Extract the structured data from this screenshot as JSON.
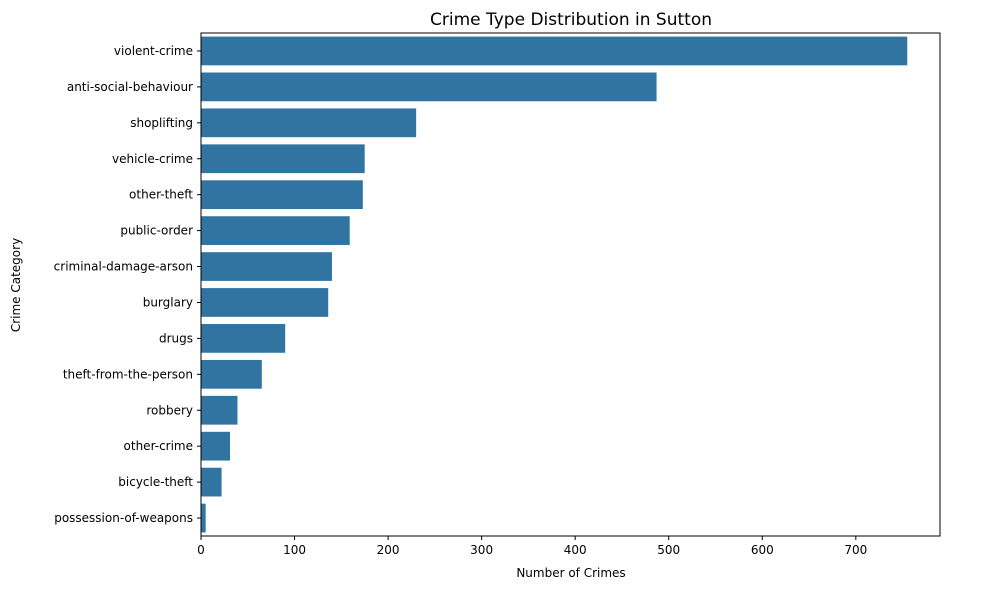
{
  "chart_data": {
    "type": "bar",
    "orientation": "horizontal",
    "title": "Crime Type Distribution in Sutton",
    "xlabel": "Number of Crimes",
    "ylabel": "Crime Category",
    "categories": [
      "violent-crime",
      "anti-social-behaviour",
      "shoplifting",
      "vehicle-crime",
      "other-theft",
      "public-order",
      "criminal-damage-arson",
      "burglary",
      "drugs",
      "theft-from-the-person",
      "robbery",
      "other-crime",
      "bicycle-theft",
      "possession-of-weapons"
    ],
    "values": [
      755,
      487,
      230,
      175,
      173,
      159,
      140,
      136,
      90,
      65,
      39,
      31,
      22,
      5
    ],
    "xlim": [
      0,
      790
    ],
    "xticks": [
      "0",
      "100",
      "200",
      "300",
      "400",
      "500",
      "600",
      "700"
    ],
    "bar_color": "#3274a1",
    "grid": false,
    "legend": "none"
  }
}
